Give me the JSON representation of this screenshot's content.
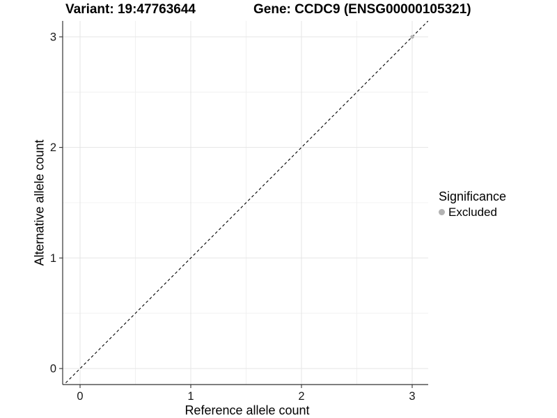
{
  "chart_data": {
    "type": "scatter",
    "title_variant": "Variant: 19:47763644",
    "title_gene": "Gene: CCDC9 (ENSG00000105321)",
    "xlabel": "Reference allele count",
    "ylabel": "Alternative allele count",
    "x_ticks": [
      0,
      1,
      2,
      3
    ],
    "y_ticks": [
      0,
      1,
      2,
      3
    ],
    "minor_ticks": [
      0.5,
      1.5,
      2.5
    ],
    "xlim": [
      -0.16,
      3.14
    ],
    "ylim": [
      -0.15,
      3.14
    ],
    "series": [
      {
        "name": "Excluded",
        "color": "#b3b3b3",
        "points": [
          {
            "x": 3,
            "y": 3
          }
        ],
        "point_radius": 2.7
      }
    ],
    "reference_line": {
      "type": "identity y=x",
      "style": "dashed",
      "color": "#000000"
    },
    "legend": {
      "position": "right",
      "title": "Significance",
      "entries": [
        {
          "label": "Excluded",
          "color": "#b3b3b3"
        }
      ]
    },
    "grid": {
      "shown": true,
      "major_color": "#e5e5e5",
      "minor_color": "#f0f0f0"
    },
    "axis_color": "#333333",
    "tick_label_color": "#1a1a1a"
  }
}
